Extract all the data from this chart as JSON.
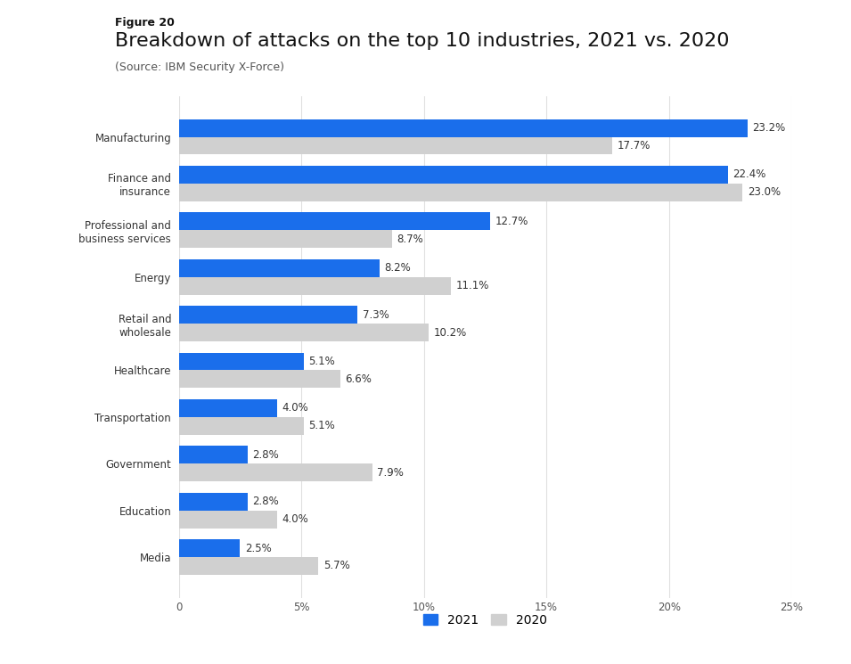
{
  "figure_label": "Figure 20",
  "title": "Breakdown of attacks on the top 10 industries, 2021 vs. 2020",
  "subtitle": "(Source: IBM Security X-Force)",
  "categories": [
    "Manufacturing",
    "Finance and\ninsurance",
    "Professional and\nbusiness services",
    "Energy",
    "Retail and\nwholesale",
    "Healthcare",
    "Transportation",
    "Government",
    "Education",
    "Media"
  ],
  "values_2021": [
    23.2,
    22.4,
    12.7,
    8.2,
    7.3,
    5.1,
    4.0,
    2.8,
    2.8,
    2.5
  ],
  "values_2020": [
    17.7,
    23.0,
    8.7,
    11.1,
    10.2,
    6.6,
    5.1,
    7.9,
    4.0,
    5.7
  ],
  "color_2021": "#1a6eeb",
  "color_2020": "#d0d0d0",
  "xlim": [
    0,
    25
  ],
  "xtick_values": [
    0,
    5,
    10,
    15,
    20,
    25
  ],
  "xtick_labels": [
    "0",
    "5%",
    "10%",
    "15%",
    "20%",
    "25%"
  ],
  "bar_height": 0.38,
  "background_color": "#ffffff",
  "label_fontsize": 8.5,
  "title_fontsize": 16,
  "figure_label_fontsize": 9,
  "subtitle_fontsize": 9,
  "axis_label_fontsize": 8.5,
  "legend_labels": [
    "2021",
    "2020"
  ]
}
